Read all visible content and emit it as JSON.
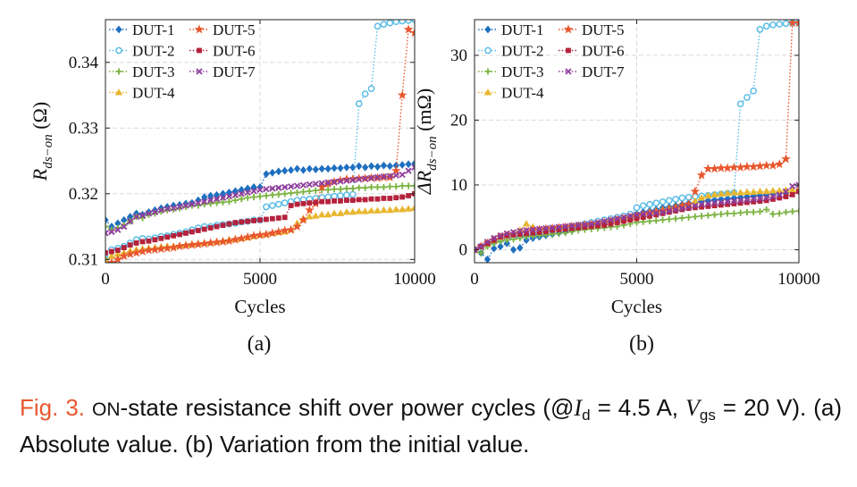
{
  "chart_data": [
    {
      "type": "line",
      "panel_label": "(a)",
      "xlabel": "Cycles",
      "ylabel_main": "R",
      "ylabel_sub": "ds−on",
      "ylabel_unit": " (Ω)",
      "xlim": [
        0,
        10000
      ],
      "ylim": [
        0.3095,
        0.3465
      ],
      "xticks": [
        0,
        5000,
        10000
      ],
      "xtick_labels": [
        "0",
        "5000",
        "10000"
      ],
      "yticks": [
        0.31,
        0.32,
        0.33,
        0.34
      ],
      "ytick_labels": [
        "0.31",
        "0.32",
        "0.33",
        "0.34"
      ],
      "grid": true,
      "legend_position": "top-left",
      "x": [
        0,
        200,
        400,
        600,
        800,
        1000,
        1200,
        1400,
        1600,
        1800,
        2000,
        2200,
        2400,
        2600,
        2800,
        3000,
        3200,
        3400,
        3600,
        3800,
        4000,
        4200,
        4400,
        4600,
        4800,
        5000,
        5200,
        5400,
        5600,
        5800,
        6000,
        6200,
        6400,
        6600,
        6800,
        7000,
        7200,
        7400,
        7600,
        7800,
        8000,
        8200,
        8400,
        8600,
        8800,
        9000,
        9200,
        9400,
        9600,
        9800,
        10000
      ],
      "series": [
        {
          "name": "DUT-1",
          "color": "#1f6fc0",
          "marker": "diamond",
          "values": [
            0.316,
            0.315,
            0.3155,
            0.316,
            0.3165,
            0.317,
            0.3168,
            0.3172,
            0.3175,
            0.3178,
            0.318,
            0.3182,
            0.3183,
            0.3185,
            0.3186,
            0.319,
            0.3195,
            0.3197,
            0.3198,
            0.32,
            0.3202,
            0.3204,
            0.3206,
            0.3208,
            0.321,
            0.321,
            0.323,
            0.3232,
            0.3234,
            0.3235,
            0.3236,
            0.3238,
            0.3236,
            0.3238,
            0.3237,
            0.3238,
            0.3238,
            0.3239,
            0.3239,
            0.324,
            0.324,
            0.3242,
            0.324,
            0.3242,
            0.3241,
            0.3243,
            0.3242,
            0.3243,
            0.3244,
            0.3245,
            0.3246
          ]
        },
        {
          "name": "DUT-2",
          "color": "#5bbde6",
          "marker": "circle",
          "values": [
            0.31,
            0.3115,
            0.3117,
            0.312,
            0.3125,
            0.313,
            0.3132,
            0.3131,
            0.3133,
            0.3135,
            0.3136,
            0.3138,
            0.314,
            0.3142,
            0.3145,
            0.3148,
            0.315,
            0.315,
            0.3152,
            0.3153,
            0.3154,
            0.3155,
            0.3157,
            0.3158,
            0.316,
            0.316,
            0.318,
            0.3182,
            0.3184,
            0.3186,
            0.3188,
            0.319,
            0.3191,
            0.3192,
            0.3193,
            0.3194,
            0.3195,
            0.3196,
            0.3197,
            0.3198,
            0.3199,
            0.3337,
            0.3352,
            0.336,
            0.3455,
            0.3458,
            0.346,
            0.3462,
            0.3463,
            0.3464,
            0.3465
          ]
        },
        {
          "name": "DUT-3",
          "color": "#7cb342",
          "marker": "plus",
          "values": [
            0.315,
            0.3145,
            0.3148,
            0.3152,
            0.3158,
            0.3165,
            0.3163,
            0.3168,
            0.317,
            0.3173,
            0.3175,
            0.3176,
            0.3178,
            0.318,
            0.3182,
            0.3182,
            0.3184,
            0.3185,
            0.3186,
            0.3187,
            0.3188,
            0.319,
            0.3192,
            0.3194,
            0.3195,
            0.3196,
            0.3197,
            0.3198,
            0.3199,
            0.32,
            0.3201,
            0.3202,
            0.3203,
            0.3204,
            0.3205,
            0.3206,
            0.3206,
            0.3207,
            0.3207,
            0.3208,
            0.3208,
            0.3209,
            0.3209,
            0.321,
            0.321,
            0.321,
            0.3211,
            0.3211,
            0.3212,
            0.3212,
            0.3212
          ]
        },
        {
          "name": "DUT-4",
          "color": "#e8b730",
          "marker": "triangle",
          "values": [
            0.31,
            0.3105,
            0.3108,
            0.311,
            0.3113,
            0.3115,
            0.3116,
            0.3117,
            0.3118,
            0.3119,
            0.312,
            0.312,
            0.3121,
            0.3122,
            0.3123,
            0.3124,
            0.3125,
            0.3126,
            0.3127,
            0.3128,
            0.313,
            0.3131,
            0.3132,
            0.3133,
            0.3135,
            0.3137,
            0.3138,
            0.314,
            0.3141,
            0.3142,
            0.3145,
            0.3155,
            0.3162,
            0.3165,
            0.3166,
            0.3168,
            0.3168,
            0.317,
            0.317,
            0.3172,
            0.3172,
            0.3173,
            0.3173,
            0.3174,
            0.3174,
            0.3175,
            0.3175,
            0.3176,
            0.3176,
            0.3177,
            0.3178
          ]
        },
        {
          "name": "DUT-5",
          "color": "#e8572e",
          "marker": "star",
          "values": [
            0.309,
            0.3095,
            0.31,
            0.3105,
            0.3108,
            0.311,
            0.3112,
            0.3114,
            0.3115,
            0.3116,
            0.3117,
            0.3118,
            0.312,
            0.3121,
            0.3122,
            0.3123,
            0.3124,
            0.3125,
            0.3126,
            0.3127,
            0.3128,
            0.313,
            0.3132,
            0.3134,
            0.3136,
            0.3137,
            0.3138,
            0.314,
            0.3142,
            0.3144,
            0.3145,
            0.315,
            0.316,
            0.3175,
            0.3185,
            0.321,
            0.3215,
            0.3218,
            0.322,
            0.3222,
            0.3222,
            0.3223,
            0.3223,
            0.3224,
            0.3224,
            0.3225,
            0.3225,
            0.3235,
            0.335,
            0.345,
            0.3445
          ]
        },
        {
          "name": "DUT-6",
          "color": "#b5223c",
          "marker": "square",
          "values": [
            0.311,
            0.3112,
            0.3114,
            0.3118,
            0.3122,
            0.3125,
            0.3127,
            0.3128,
            0.313,
            0.3132,
            0.3134,
            0.3136,
            0.3138,
            0.314,
            0.3142,
            0.3144,
            0.3146,
            0.3148,
            0.315,
            0.3152,
            0.3154,
            0.3156,
            0.3157,
            0.3158,
            0.3159,
            0.316,
            0.3161,
            0.3162,
            0.3163,
            0.3164,
            0.3182,
            0.3184,
            0.3185,
            0.3186,
            0.3187,
            0.3188,
            0.3188,
            0.3189,
            0.3189,
            0.319,
            0.319,
            0.3191,
            0.3191,
            0.3192,
            0.3192,
            0.3193,
            0.3193,
            0.3194,
            0.3195,
            0.3197,
            0.32
          ]
        },
        {
          "name": "DUT-7",
          "color": "#8e3e9c",
          "marker": "x",
          "values": [
            0.314,
            0.3142,
            0.3145,
            0.315,
            0.3158,
            0.3165,
            0.3167,
            0.317,
            0.3172,
            0.3175,
            0.3177,
            0.3178,
            0.318,
            0.3182,
            0.3184,
            0.3186,
            0.3188,
            0.319,
            0.3192,
            0.3194,
            0.3196,
            0.3198,
            0.32,
            0.3202,
            0.3204,
            0.3206,
            0.3207,
            0.3208,
            0.3209,
            0.321,
            0.3211,
            0.3212,
            0.3213,
            0.3214,
            0.3215,
            0.3216,
            0.3217,
            0.3218,
            0.3219,
            0.322,
            0.3221,
            0.3222,
            0.3223,
            0.3224,
            0.3225,
            0.3226,
            0.3227,
            0.3228,
            0.3229,
            0.3235,
            0.324
          ]
        }
      ]
    },
    {
      "type": "line",
      "panel_label": "(b)",
      "xlabel": "Cycles",
      "ylabel_main": "ΔR",
      "ylabel_sub": "ds−on",
      "ylabel_unit": " (mΩ)",
      "xlim": [
        0,
        10000
      ],
      "ylim": [
        -2,
        35.5
      ],
      "xticks": [
        0,
        5000,
        10000
      ],
      "xtick_labels": [
        "0",
        "5000",
        "10000"
      ],
      "yticks": [
        0,
        10,
        20,
        30
      ],
      "ytick_labels": [
        "0",
        "10",
        "20",
        "30"
      ],
      "grid": true,
      "legend_position": "top-left",
      "x": [
        0,
        200,
        400,
        600,
        800,
        1000,
        1200,
        1400,
        1600,
        1800,
        2000,
        2200,
        2400,
        2600,
        2800,
        3000,
        3200,
        3400,
        3600,
        3800,
        4000,
        4200,
        4400,
        4600,
        4800,
        5000,
        5200,
        5400,
        5600,
        5800,
        6000,
        6200,
        6400,
        6600,
        6800,
        7000,
        7200,
        7400,
        7600,
        7800,
        8000,
        8200,
        8400,
        8600,
        8800,
        9000,
        9200,
        9400,
        9600,
        9800,
        10000
      ],
      "series": [
        {
          "name": "DUT-1",
          "color": "#1f6fc0",
          "marker": "diamond",
          "values": [
            0,
            -0.5,
            -1.5,
            0.2,
            0.5,
            1.0,
            0.0,
            0.3,
            1.5,
            1.8,
            2.0,
            2.2,
            2.4,
            2.6,
            2.8,
            3.0,
            3.3,
            3.5,
            3.8,
            4.0,
            4.2,
            4.5,
            4.7,
            5.0,
            5.2,
            5.5,
            5.8,
            6.0,
            6.2,
            6.5,
            6.6,
            6.8,
            7.0,
            7.2,
            7.3,
            7.5,
            7.6,
            7.7,
            7.8,
            7.9,
            8.0,
            8.1,
            8.2,
            8.3,
            8.4,
            8.5,
            8.6,
            8.7,
            8.8,
            8.9,
            9.0
          ]
        },
        {
          "name": "DUT-2",
          "color": "#5bbde6",
          "marker": "circle",
          "values": [
            0,
            0.5,
            1.0,
            1.2,
            1.5,
            1.8,
            2.0,
            2.1,
            2.2,
            2.4,
            2.6,
            2.8,
            3.0,
            3.2,
            3.4,
            3.6,
            3.8,
            4.0,
            4.2,
            4.4,
            4.6,
            4.8,
            5.0,
            5.2,
            5.5,
            6.5,
            6.8,
            7.0,
            7.2,
            7.4,
            7.6,
            7.8,
            8.0,
            8.1,
            8.2,
            8.3,
            8.4,
            8.5,
            8.6,
            8.7,
            8.8,
            22.5,
            23.5,
            24.5,
            34.0,
            34.5,
            34.7,
            34.8,
            34.9,
            35.0,
            35.0
          ]
        },
        {
          "name": "DUT-3",
          "color": "#7cb342",
          "marker": "plus",
          "values": [
            0,
            -0.5,
            0.5,
            1.0,
            1.3,
            1.5,
            1.6,
            1.8,
            2.0,
            2.1,
            2.2,
            2.3,
            2.4,
            2.5,
            2.6,
            2.8,
            3.0,
            3.1,
            3.2,
            3.3,
            3.4,
            3.5,
            3.6,
            3.8,
            4.0,
            4.2,
            4.3,
            4.4,
            4.5,
            4.6,
            4.7,
            4.8,
            4.9,
            5.0,
            5.1,
            5.2,
            5.3,
            5.4,
            5.5,
            5.6,
            5.6,
            5.7,
            5.8,
            5.8,
            5.9,
            6.2,
            5.5,
            5.6,
            5.8,
            5.9,
            6.0
          ]
        },
        {
          "name": "DUT-4",
          "color": "#e8b730",
          "marker": "triangle",
          "values": [
            0,
            0.5,
            1.0,
            1.5,
            2.0,
            2.3,
            2.5,
            3.0,
            4.0,
            3.5,
            3.0,
            3.2,
            3.3,
            3.4,
            3.5,
            3.6,
            3.7,
            3.8,
            3.9,
            4.0,
            4.2,
            4.4,
            4.6,
            4.8,
            5.0,
            5.3,
            5.5,
            5.8,
            6.0,
            6.2,
            6.4,
            6.6,
            6.8,
            7.0,
            7.5,
            8.0,
            8.3,
            8.5,
            8.6,
            8.7,
            8.8,
            8.8,
            8.9,
            8.9,
            9.0,
            9.0,
            9.1,
            9.1,
            9.2,
            9.2,
            9.3
          ]
        },
        {
          "name": "DUT-5",
          "color": "#e8572e",
          "marker": "star",
          "values": [
            0,
            0.5,
            1.0,
            1.5,
            2.0,
            2.2,
            2.4,
            2.6,
            2.8,
            3.0,
            3.1,
            3.2,
            3.3,
            3.4,
            3.5,
            3.6,
            3.7,
            3.8,
            3.9,
            4.0,
            4.2,
            4.4,
            4.6,
            4.8,
            5.0,
            5.2,
            5.4,
            5.6,
            5.8,
            6.0,
            6.2,
            6.5,
            6.8,
            7.0,
            9.0,
            11.5,
            12.5,
            12.5,
            12.6,
            12.6,
            12.7,
            12.7,
            12.8,
            12.8,
            12.9,
            13.0,
            13.0,
            13.2,
            14.0,
            35.0,
            35.0
          ]
        },
        {
          "name": "DUT-6",
          "color": "#b5223c",
          "marker": "square",
          "values": [
            0,
            0.5,
            1.0,
            1.5,
            2.0,
            2.2,
            2.3,
            2.4,
            2.5,
            2.6,
            2.7,
            2.8,
            3.0,
            3.1,
            3.2,
            3.3,
            3.4,
            3.5,
            3.6,
            3.7,
            3.8,
            4.0,
            4.2,
            4.4,
            4.6,
            4.8,
            5.0,
            5.2,
            5.4,
            5.6,
            5.8,
            6.0,
            6.2,
            6.4,
            6.5,
            6.6,
            6.7,
            6.8,
            6.9,
            7.0,
            7.1,
            7.2,
            7.3,
            7.4,
            7.5,
            7.6,
            7.8,
            8.0,
            8.2,
            8.5,
            9.0
          ]
        },
        {
          "name": "DUT-7",
          "color": "#8e3e9c",
          "marker": "x",
          "values": [
            0,
            0.5,
            1.2,
            1.8,
            2.2,
            2.5,
            2.7,
            2.9,
            3.0,
            3.1,
            3.2,
            3.3,
            3.4,
            3.5,
            3.6,
            3.7,
            3.8,
            3.9,
            4.0,
            4.2,
            4.4,
            4.6,
            4.8,
            5.0,
            5.2,
            5.4,
            5.5,
            5.6,
            5.7,
            5.8,
            6.0,
            6.2,
            6.4,
            6.6,
            6.8,
            7.0,
            7.1,
            7.2,
            7.3,
            7.4,
            7.5,
            7.6,
            7.7,
            7.8,
            7.9,
            8.0,
            8.2,
            8.5,
            9.0,
            9.8,
            10.0
          ]
        }
      ]
    }
  ],
  "caption": {
    "fig_label": "Fig. 3.",
    "pre_sc": "",
    "sc_text": "ON",
    "text1": "-state resistance shift over power cycles (@",
    "id_var": "I",
    "id_sub": "d",
    "text2": " = 4.5 A, ",
    "vgs_var": "V",
    "vgs_sub": "gs",
    "text3": " = 20 V). (a) Absolute value. (b) Variation from the initial value."
  }
}
